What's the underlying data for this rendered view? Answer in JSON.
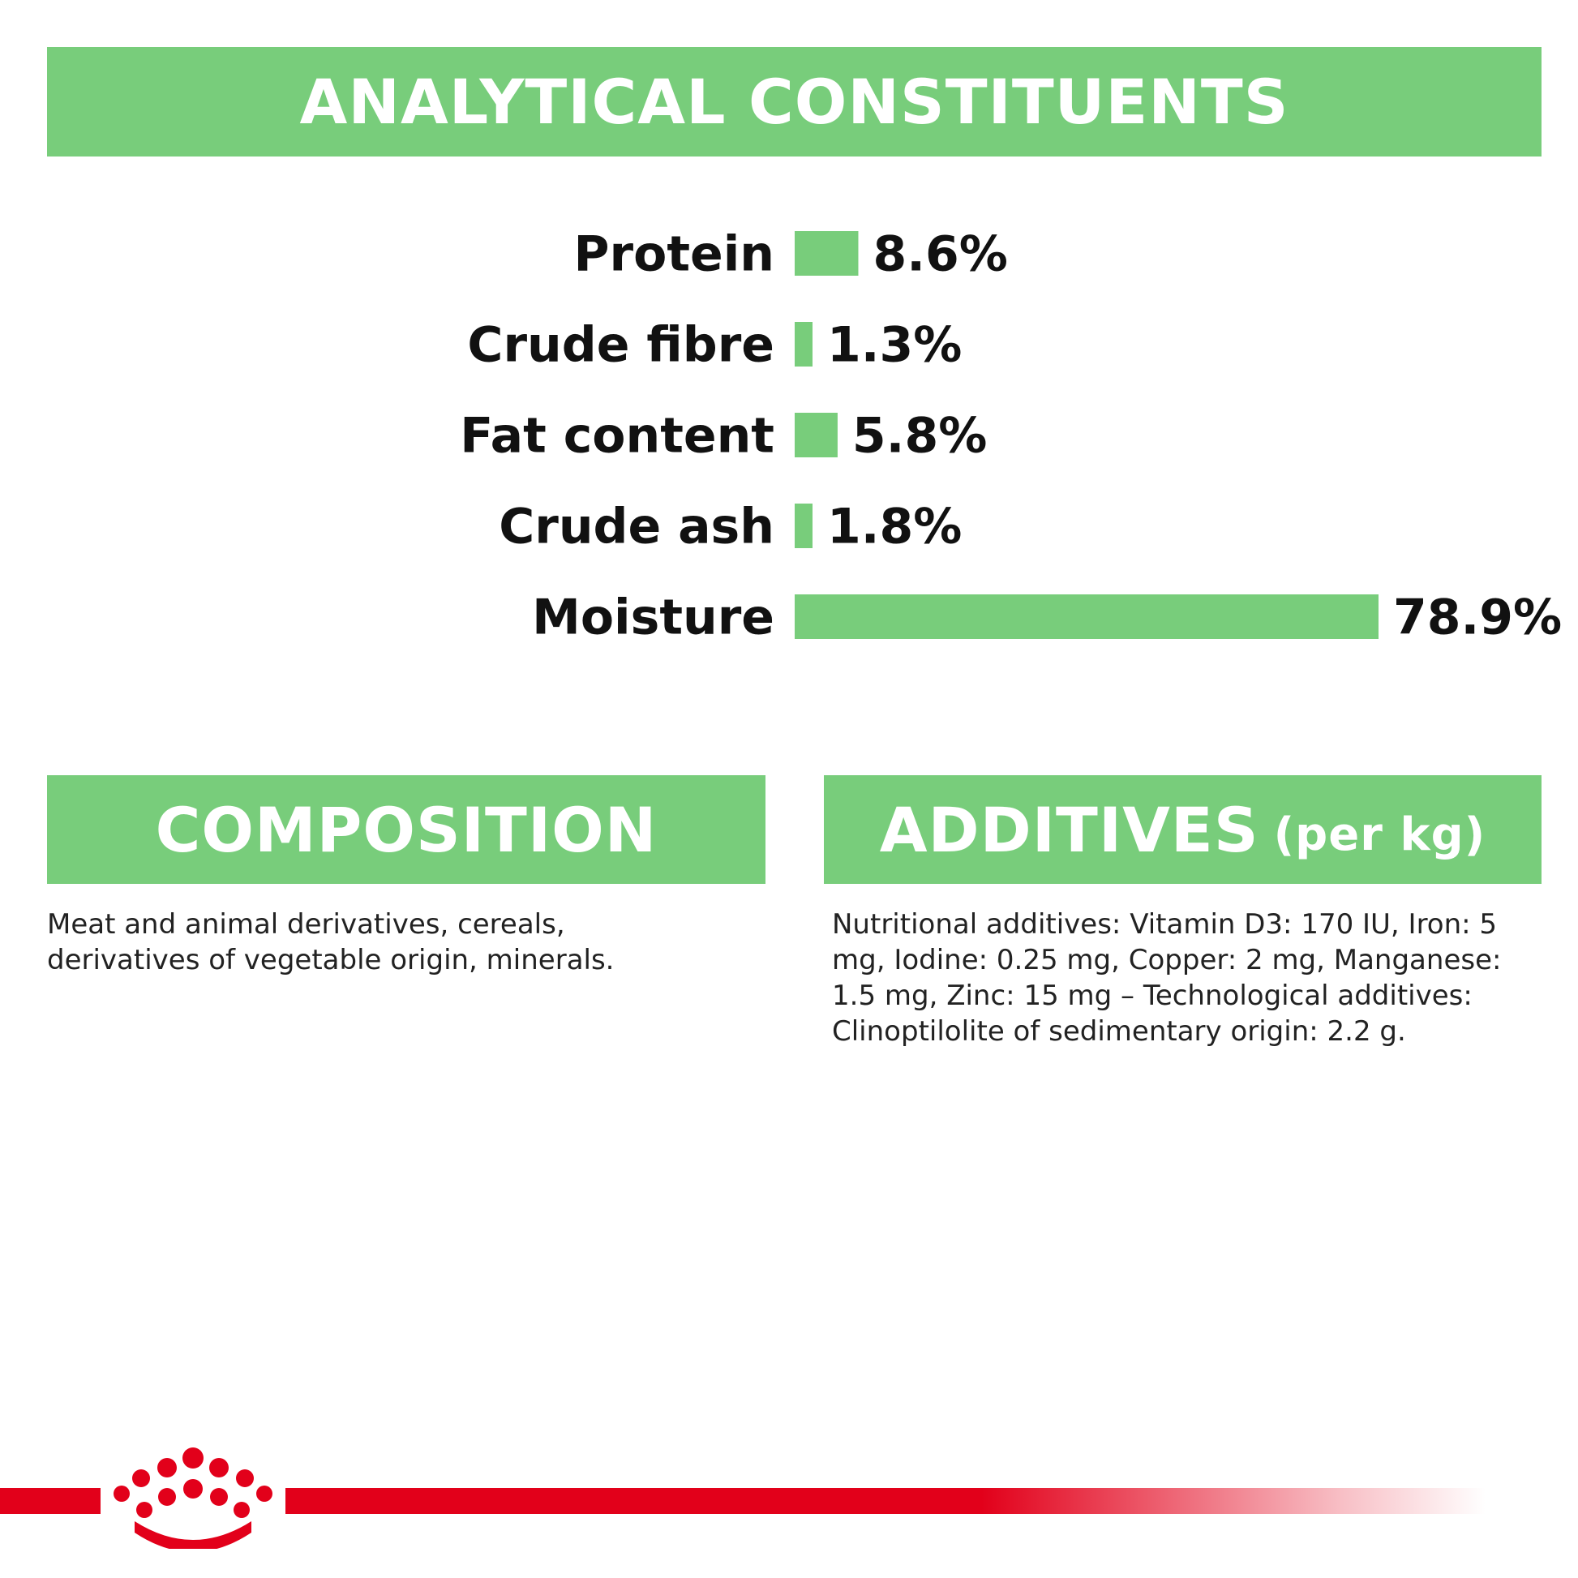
{
  "colors": {
    "accent": "#78cd7b",
    "brand_red": "#e2001a",
    "text": "#111111"
  },
  "headings": {
    "analytical": "ANALYTICAL CONSTITUENTS",
    "composition": "COMPOSITION",
    "additives": "ADDITIVES",
    "additives_suffix": "(per kg)"
  },
  "chart_data": {
    "type": "bar",
    "orientation": "horizontal",
    "categories": [
      "Protein",
      "Crude fibre",
      "Fat content",
      "Crude ash",
      "Moisture"
    ],
    "values": [
      8.6,
      1.3,
      5.8,
      1.8,
      78.9
    ],
    "value_labels": [
      "8.6%",
      "1.3%",
      "5.8%",
      "1.8%",
      "78.9%"
    ],
    "unit": "%",
    "title": "",
    "xlabel": "",
    "ylabel": "",
    "grid": false,
    "legend": "none"
  },
  "composition_text": "Meat and animal derivatives, cereals, derivatives of vegetable origin, minerals.",
  "additives_text": "Nutritional additives: Vitamin D3: 170 IU, Iron: 5 mg, Iodine: 0.25 mg, Copper: 2 mg, Manganese: 1.5 mg, Zinc: 15 mg – Technological additives: Clinoptilolite of sedimentary origin: 2.2 g.",
  "logo": {
    "icon": "royal-canin-crown-icon"
  }
}
